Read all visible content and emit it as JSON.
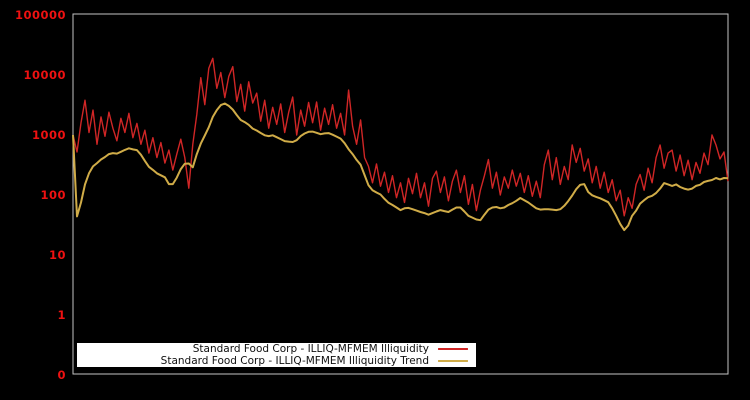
{
  "figure": {
    "background": "#000000",
    "plot_border_color": "#c3c3c3"
  },
  "y_axis": {
    "tick_labels": [
      "100000",
      "10000",
      "1000",
      "100",
      "10",
      "1",
      "0"
    ],
    "label_color": "#ee1111",
    "scale": "log"
  },
  "legend": {
    "background": "#ffffff",
    "position": "bottom-left-inside"
  },
  "chart_data": {
    "type": "line",
    "yscale": "log",
    "ylim_labels": [
      "0",
      "100000"
    ],
    "x_axis": "time (no x tick labels shown)",
    "grid": false,
    "title": "",
    "xlabel": "",
    "ylabel": "",
    "legend_position": "bottom-left-inside, white box",
    "series": [
      {
        "name": "Standard Food Corp - ILLIQ-MFMEM Illiquidity",
        "color": "#d02626",
        "stroke_width": 1.4,
        "values": [
          1000,
          520,
          1600,
          3800,
          1100,
          2600,
          700,
          2000,
          950,
          2400,
          1300,
          800,
          1900,
          1100,
          2300,
          900,
          1560,
          700,
          1200,
          500,
          900,
          420,
          750,
          340,
          560,
          260,
          480,
          850,
          420,
          130,
          700,
          2200,
          9000,
          3200,
          13000,
          19000,
          6000,
          11000,
          4200,
          9500,
          13800,
          3600,
          7000,
          2500,
          7700,
          3400,
          5000,
          1700,
          3800,
          1300,
          2900,
          1500,
          3300,
          1100,
          2400,
          4300,
          1000,
          2600,
          1400,
          3500,
          1600,
          3550,
          1200,
          2800,
          1500,
          3200,
          1300,
          2300,
          1000,
          5600,
          1400,
          700,
          1780,
          420,
          300,
          160,
          330,
          140,
          240,
          110,
          210,
          90,
          160,
          75,
          190,
          105,
          230,
          90,
          160,
          65,
          190,
          250,
          110,
          200,
          80,
          170,
          260,
          110,
          210,
          70,
          150,
          55,
          120,
          210,
          390,
          130,
          240,
          100,
          200,
          130,
          260,
          140,
          230,
          110,
          210,
          95,
          170,
          90,
          320,
          560,
          180,
          420,
          150,
          300,
          180,
          680,
          350,
          600,
          250,
          400,
          160,
          300,
          130,
          240,
          110,
          180,
          80,
          120,
          45,
          90,
          60,
          150,
          220,
          120,
          280,
          160,
          420,
          680,
          280,
          500,
          560,
          250,
          465,
          210,
          380,
          180,
          350,
          230,
          500,
          320,
          1000,
          680,
          400,
          520,
          170
        ]
      },
      {
        "name": "Standard Food Corp - ILLIQ-MFMEM Illiquidity Trend",
        "color": "#d0ac48",
        "stroke_width": 2,
        "values": [
          1000,
          44,
          75,
          150,
          230,
          300,
          340,
          390,
          430,
          480,
          500,
          490,
          525,
          565,
          600,
          575,
          560,
          470,
          370,
          295,
          262,
          230,
          213,
          197,
          152,
          152,
          195,
          270,
          332,
          335,
          290,
          480,
          720,
          980,
          1350,
          2000,
          2600,
          3150,
          3350,
          3050,
          2650,
          2150,
          1780,
          1640,
          1480,
          1280,
          1190,
          1080,
          990,
          960,
          990,
          920,
          855,
          790,
          775,
          765,
          820,
          960,
          1060,
          1130,
          1140,
          1090,
          1030,
          1065,
          1075,
          1010,
          940,
          870,
          730,
          580,
          480,
          385,
          320,
          215,
          145,
          120,
          110,
          102,
          86,
          74,
          68,
          62,
          56,
          60,
          61,
          58,
          55,
          52,
          50,
          47,
          50,
          53,
          56,
          54,
          52,
          57,
          62,
          62,
          53,
          45,
          42,
          39,
          38,
          47,
          57,
          62,
          63,
          60,
          62,
          68,
          73,
          80,
          89,
          82,
          75,
          67,
          60,
          57,
          58,
          58,
          57,
          56,
          58,
          66,
          79,
          98,
          125,
          148,
          152,
          112,
          99,
          93,
          88,
          82,
          76,
          60,
          45,
          33,
          26,
          31,
          45,
          55,
          72,
          82,
          92,
          97,
          108,
          128,
          158,
          150,
          142,
          150,
          136,
          128,
          123,
          128,
          142,
          148,
          165,
          172,
          178,
          192,
          182,
          192,
          190
        ]
      }
    ]
  }
}
